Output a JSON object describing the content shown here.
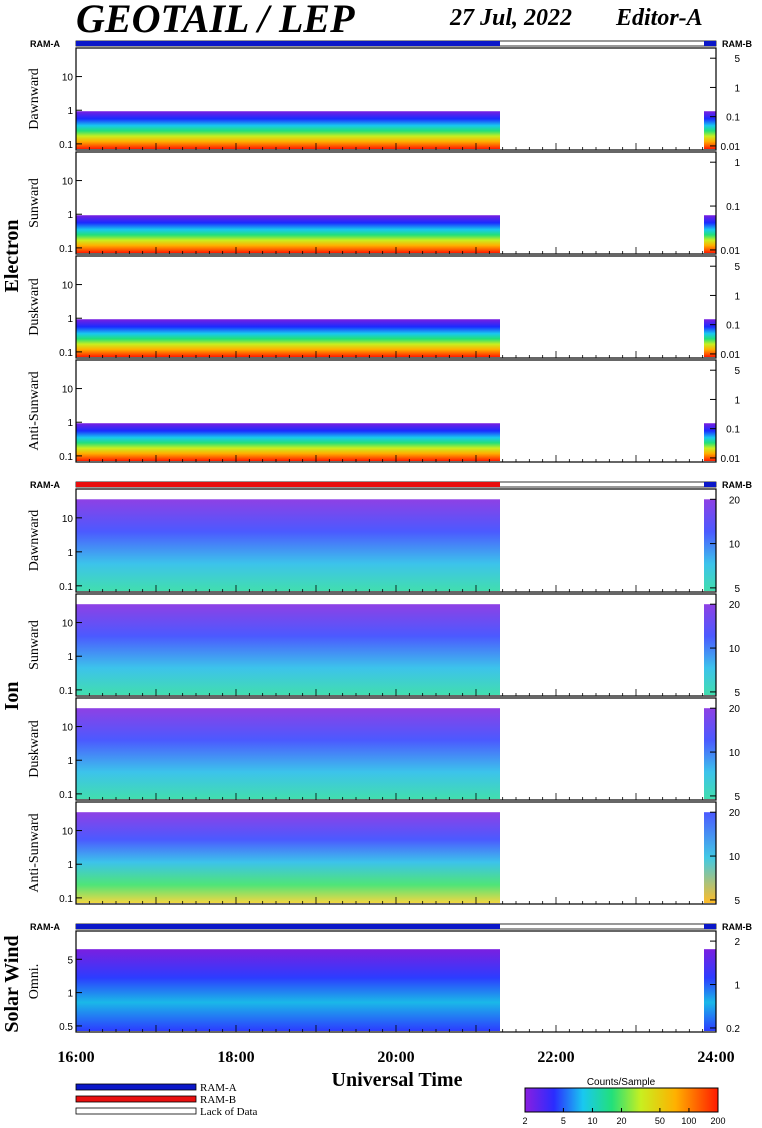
{
  "header": {
    "title": "GEOTAIL / LEP",
    "date": "27 Jul, 2022",
    "editor": "Editor-A"
  },
  "colors": {
    "ram_a": "#0b17c8",
    "ram_b": "#e80f0f",
    "lack": "#ffffff"
  },
  "chart_data": {
    "type": "heatmap",
    "x_axis": {
      "label": "Universal Time",
      "ticks": [
        "16:00",
        "18:00",
        "20:00",
        "22:00",
        "24:00"
      ],
      "range_hours": [
        16,
        24
      ]
    },
    "data_coverage_hours": [
      [
        16.0,
        21.3
      ],
      [
        23.85,
        24.0
      ]
    ],
    "groups": [
      {
        "name": "Electron",
        "ram_left": "RAM-A",
        "ram_right": "RAM-B",
        "panels": [
          {
            "name": "Dawnward",
            "left_ticks": [
              "10",
              "1",
              "0.1"
            ],
            "right_ticks": [
              "5",
              "1",
              "0.1",
              "0.01"
            ]
          },
          {
            "name": "Sunward",
            "left_ticks": [
              "10",
              "1",
              "0.1"
            ],
            "right_ticks": [
              "1",
              "0.1",
              "0.01"
            ]
          },
          {
            "name": "Duskward",
            "left_ticks": [
              "10",
              "1",
              "0.1"
            ],
            "right_ticks": [
              "5",
              "1",
              "0.1",
              "0.01"
            ]
          },
          {
            "name": "Anti-Sunward",
            "left_ticks": [
              "10",
              "1",
              "0.1"
            ],
            "right_ticks": [
              "5",
              "1",
              "0.1",
              "0.01"
            ]
          }
        ]
      },
      {
        "name": "Ion",
        "ram_left": "RAM-A",
        "ram_right": "RAM-B",
        "panels": [
          {
            "name": "Dawnward",
            "left_ticks": [
              "10",
              "1",
              "0.1"
            ],
            "right_ticks": [
              "20",
              "10",
              "5"
            ]
          },
          {
            "name": "Sunward",
            "left_ticks": [
              "10",
              "1",
              "0.1"
            ],
            "right_ticks": [
              "20",
              "10",
              "5"
            ]
          },
          {
            "name": "Duskward",
            "left_ticks": [
              "10",
              "1",
              "0.1"
            ],
            "right_ticks": [
              "20",
              "10",
              "5"
            ]
          },
          {
            "name": "Anti-Sunward",
            "left_ticks": [
              "10",
              "1",
              "0.1"
            ],
            "right_ticks": [
              "20",
              "10",
              "5"
            ]
          }
        ]
      },
      {
        "name": "Solar Wind",
        "ram_left": "RAM-A",
        "ram_right": "RAM-B",
        "panels": [
          {
            "name": "Omni.",
            "left_ticks": [
              "5",
              "1",
              "0.5"
            ],
            "right_ticks": [
              "2",
              "1",
              "0.2"
            ]
          }
        ]
      }
    ],
    "legend": [
      {
        "label": "RAM-A"
      },
      {
        "label": "RAM-B"
      },
      {
        "label": "Lack of Data"
      }
    ],
    "colorbar": {
      "title": "Counts/Sample",
      "ticks": [
        "2",
        "5",
        "10",
        "20",
        "50",
        "100",
        "200"
      ]
    }
  }
}
